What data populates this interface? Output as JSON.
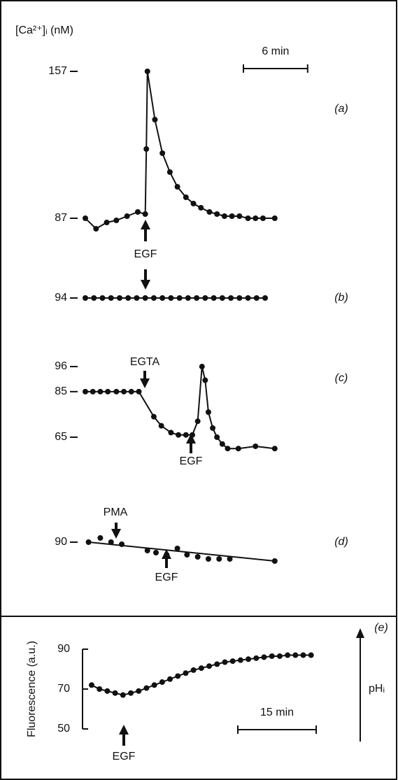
{
  "chart_data": [
    {
      "type": "line",
      "label": "(a)",
      "ylabel": "[Ca²⁺]ᵢ (nM)",
      "scalebar": {
        "value": 6,
        "label": "6 min"
      },
      "annotations": [
        "EGF"
      ],
      "xlim": [
        0,
        20
      ],
      "ylim": [
        80,
        160
      ],
      "yticks": [
        87,
        157
      ],
      "x": [
        0,
        1.0,
        2.0,
        2.9,
        3.9,
        4.9,
        5.6,
        5.7,
        5.8,
        6.5,
        7.2,
        7.9,
        8.6,
        9.4,
        10.1,
        10.8,
        11.6,
        12.3,
        13.0,
        13.7,
        14.4,
        15.2,
        15.9,
        16.6,
        17.7
      ],
      "values": [
        87,
        82,
        85,
        86,
        88,
        90,
        89,
        120,
        157,
        134,
        118,
        109,
        102,
        97,
        94,
        92,
        90,
        89,
        88,
        88,
        88,
        87,
        87,
        87,
        87
      ]
    },
    {
      "type": "line",
      "label": "(b)",
      "xlim": [
        0,
        20
      ],
      "ylim": [
        90,
        98
      ],
      "yticks": [
        94
      ],
      "x": [
        0,
        0.8,
        1.6,
        2.4,
        3.2,
        4.0,
        4.8,
        5.6,
        6.4,
        7.2,
        8.0,
        8.8,
        9.6,
        10.4,
        11.2,
        12.0,
        12.8,
        13.6,
        14.4,
        15.2,
        16.0,
        16.8
      ],
      "values": [
        94,
        94,
        94,
        94,
        94,
        94,
        94,
        94,
        94,
        94,
        94,
        94,
        94,
        94,
        94,
        94,
        94,
        94,
        94,
        94,
        94,
        94
      ]
    },
    {
      "type": "line",
      "label": "(c)",
      "annotations": [
        "EGTA",
        "EGF"
      ],
      "xlim": [
        0,
        20
      ],
      "ylim": [
        55,
        100
      ],
      "yticks": [
        96,
        85,
        65
      ],
      "x": [
        0,
        0.7,
        1.4,
        2.1,
        2.9,
        3.6,
        4.3,
        5.0,
        6.4,
        7.1,
        8.0,
        8.7,
        9.4,
        10.0,
        10.5,
        10.9,
        11.2,
        11.5,
        11.9,
        12.3,
        12.8,
        13.3,
        14.3,
        15.9,
        17.7
      ],
      "values": [
        85,
        85,
        85,
        85,
        85,
        85,
        85,
        85,
        74,
        70,
        67,
        66,
        66,
        66,
        72,
        96,
        90,
        76,
        69,
        65,
        62,
        60,
        60,
        61,
        60
      ]
    },
    {
      "type": "scatter",
      "label": "(d)",
      "annotations": [
        "PMA",
        "EGF"
      ],
      "trend_line": true,
      "xlim": [
        0,
        20
      ],
      "ylim": [
        80,
        95
      ],
      "yticks": [
        90
      ],
      "x": [
        0.3,
        1.4,
        2.4,
        3.4,
        5.8,
        6.6,
        7.6,
        8.6,
        9.5,
        10.5,
        11.5,
        12.5,
        13.5,
        17.7
      ],
      "values": [
        90,
        92,
        90,
        89,
        86,
        85,
        84,
        87,
        84,
        83,
        82,
        82,
        82,
        81
      ]
    },
    {
      "type": "line",
      "label": "(e)",
      "ylabel": "Fluorescence (a.u.)",
      "scalebar": {
        "value": 15,
        "label": "15 min"
      },
      "annotations": [
        "EGF",
        "pHᵢ"
      ],
      "xlim": [
        0,
        50
      ],
      "ylim": [
        50,
        90
      ],
      "yticks": [
        50,
        70,
        90
      ],
      "x": [
        0,
        1.5,
        3,
        4.5,
        6,
        7.5,
        9,
        10.5,
        12,
        13.5,
        15,
        16.5,
        18,
        19.5,
        21,
        22.5,
        24,
        25.5,
        27,
        28.5,
        30,
        31.5,
        33,
        34.5,
        36,
        37.5,
        39,
        40.5,
        42
      ],
      "values": [
        72,
        70,
        69,
        68,
        67,
        68,
        69,
        70.5,
        72,
        73.5,
        75,
        76.5,
        78,
        79.5,
        80.5,
        81.5,
        82.5,
        83.5,
        84,
        84.5,
        85,
        85.5,
        86,
        86.5,
        86.5,
        87,
        87,
        87,
        87
      ]
    }
  ]
}
